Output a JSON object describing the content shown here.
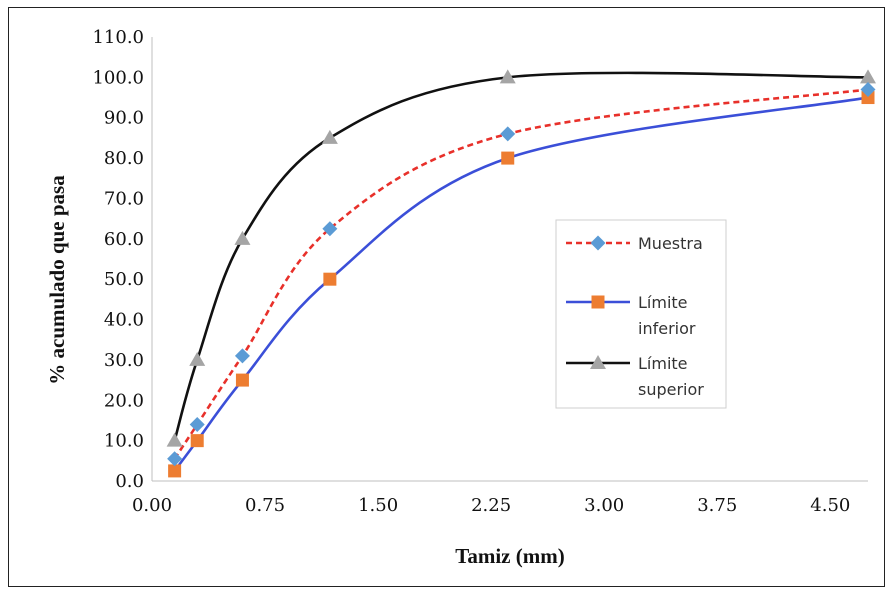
{
  "chart_data": {
    "type": "line",
    "title": "",
    "xlabel": "Tamiz (mm)",
    "ylabel": "% acumulado  que pasa",
    "xlim": [
      0,
      4.75
    ],
    "ylim": [
      0,
      110
    ],
    "x_ticks": [
      "0.00",
      "0.75",
      "1.50",
      "2.25",
      "3.00",
      "3.75",
      "4.50"
    ],
    "x_tick_values": [
      0,
      0.75,
      1.5,
      2.25,
      3.0,
      3.75,
      4.5
    ],
    "y_ticks": [
      "0.0",
      "10.0",
      "20.0",
      "30.0",
      "40.0",
      "50.0",
      "60.0",
      "70.0",
      "80.0",
      "90.0",
      "100.0",
      "110.0"
    ],
    "y_tick_values": [
      0,
      10,
      20,
      30,
      40,
      50,
      60,
      70,
      80,
      90,
      100,
      110
    ],
    "legend_position": "right",
    "series": [
      {
        "name": "Muestra",
        "legend_lines": [
          "Muestra"
        ],
        "color": "#e8302a",
        "marker_color": "#5b9bd5",
        "marker": "diamond",
        "line_style": "dashed",
        "x": [
          0.15,
          0.3,
          0.6,
          1.18,
          2.36,
          4.75
        ],
        "y": [
          5.5,
          14,
          31,
          62.5,
          86,
          97
        ]
      },
      {
        "name": "Límite inferior",
        "legend_lines": [
          "Límite",
          "inferior"
        ],
        "color": "#3b4fd8",
        "marker_color": "#ed7d31",
        "marker": "square",
        "line_style": "solid",
        "x": [
          0.15,
          0.3,
          0.6,
          1.18,
          2.36,
          4.75
        ],
        "y": [
          2.5,
          10,
          25,
          50,
          80,
          95
        ]
      },
      {
        "name": "Límite superior",
        "legend_lines": [
          "Límite",
          "superior"
        ],
        "color": "#111111",
        "marker_color": "#a5a5a5",
        "marker": "triangle",
        "line_style": "solid",
        "x": [
          0.15,
          0.3,
          0.6,
          1.18,
          2.36,
          4.75
        ],
        "y": [
          10,
          30,
          60,
          85,
          100,
          100
        ]
      }
    ]
  }
}
